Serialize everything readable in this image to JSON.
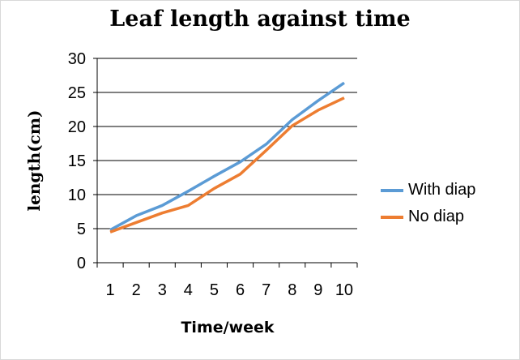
{
  "chart_data": {
    "type": "line",
    "title": "Leaf length against time",
    "xlabel": "Time/week",
    "ylabel": "length(cm)",
    "x": [
      1,
      2,
      3,
      4,
      5,
      6,
      7,
      8,
      9,
      10
    ],
    "ylim": [
      0,
      30
    ],
    "yticks": [
      0,
      5,
      10,
      15,
      20,
      25,
      30
    ],
    "grid": "horizontal",
    "legend_position": "right",
    "series": [
      {
        "name": "With diap",
        "color": "#5b9bd5",
        "values": [
          4.8,
          6.9,
          8.4,
          10.5,
          12.7,
          14.8,
          17.4,
          21.0,
          23.8,
          26.4
        ]
      },
      {
        "name": "No diap",
        "color": "#ed7d31",
        "values": [
          4.5,
          5.9,
          7.3,
          8.4,
          10.9,
          13.0,
          16.5,
          20.1,
          22.4,
          24.2
        ]
      }
    ]
  }
}
